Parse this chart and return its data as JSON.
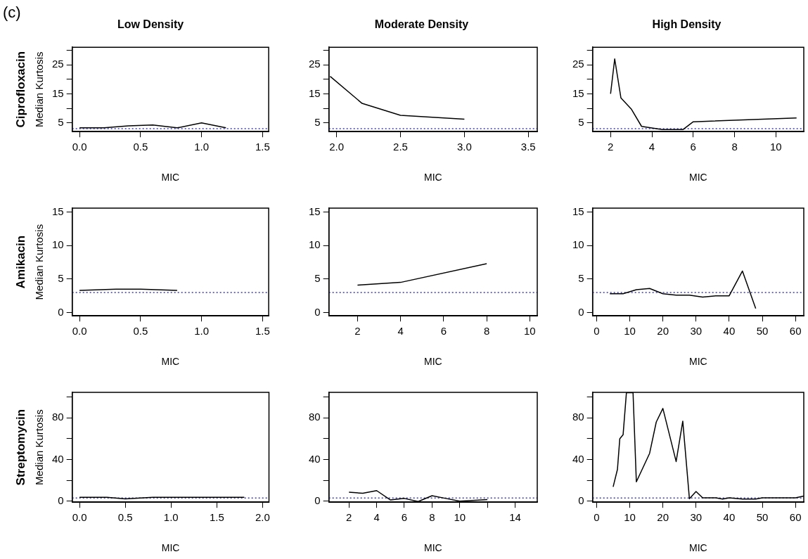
{
  "chart_data": [
    {
      "type": "line",
      "title": "Low Density",
      "xlabel": "MIC",
      "ylabel": "Median Kurtosis",
      "annotations": [
        "(c)",
        "Ciprofloxacin"
      ],
      "x": [
        0,
        0.2,
        0.4,
        0.6,
        0.8,
        1.0,
        1.2
      ],
      "values": [
        3.3,
        3.3,
        4.0,
        4.3,
        3.3,
        5.0,
        3.3
      ],
      "color": "#000000",
      "xlim": [
        -0.06,
        1.55
      ],
      "xticks": [
        {
          "value": 0,
          "label": "0.0"
        },
        0.5,
        {
          "value": 1,
          "label": "1.0"
        },
        1.5
      ],
      "ylim": [
        2,
        31
      ],
      "yticks": [
        5,
        {
          "value": 10,
          "label": null
        },
        15,
        {
          "value": 20,
          "label": null
        },
        25,
        {
          "value": 30,
          "label": null
        }
      ],
      "ref_lines": [
        {
          "axis": "y",
          "value": 3,
          "color": "#3b3bb0",
          "line_style": "dotted"
        }
      ],
      "grid": false,
      "legend": false
    },
    {
      "type": "line",
      "title": "Moderate Density",
      "xlabel": "MIC",
      "x": [
        1.95,
        2.2,
        2.5,
        3.0
      ],
      "values": [
        21.0,
        11.7,
        7.6,
        6.3
      ],
      "color": "#000000",
      "xlim": [
        1.94,
        3.57
      ],
      "xticks": [
        {
          "value": 2,
          "label": "2.0"
        },
        2.5,
        {
          "value": 3,
          "label": "3.0"
        },
        3.5
      ],
      "ylim": [
        2,
        31
      ],
      "yticks": [
        5,
        {
          "value": 10,
          "label": null
        },
        15,
        {
          "value": 20,
          "label": null
        },
        25,
        {
          "value": 30,
          "label": null
        }
      ],
      "ref_lines": [
        {
          "axis": "y",
          "value": 3,
          "color": "#3b3bb0",
          "line_style": "dotted"
        }
      ],
      "grid": false,
      "legend": false
    },
    {
      "type": "line",
      "title": "High Density",
      "xlabel": "MIC",
      "x": [
        2,
        2.2,
        2.5,
        3,
        3.5,
        4.5,
        5.5,
        6,
        11
      ],
      "values": [
        15.0,
        27.0,
        13.6,
        9.8,
        3.8,
        2.7,
        2.7,
        5.4,
        6.7
      ],
      "color": "#000000",
      "xlim": [
        1.13,
        11.35
      ],
      "xticks": [
        2,
        4,
        6,
        8,
        10
      ],
      "ylim": [
        2,
        31
      ],
      "yticks": [
        5,
        {
          "value": 10,
          "label": null
        },
        15,
        {
          "value": 20,
          "label": null
        },
        25,
        {
          "value": 30,
          "label": null
        }
      ],
      "ref_lines": [
        {
          "axis": "y",
          "value": 3,
          "color": "#3b3bb0",
          "line_style": "dotted"
        }
      ],
      "grid": false,
      "legend": false
    },
    {
      "type": "line",
      "xlabel": "MIC",
      "ylabel": "Median Kurtosis",
      "annotations": [
        "Amikacin"
      ],
      "x": [
        0,
        0.3,
        0.5,
        0.8
      ],
      "values": [
        3.3,
        3.5,
        3.5,
        3.3
      ],
      "color": "#000000",
      "xlim": [
        -0.06,
        1.55
      ],
      "xticks": [
        {
          "value": 0,
          "label": "0.0"
        },
        0.5,
        {
          "value": 1,
          "label": "1.0"
        },
        1.5
      ],
      "ylim": [
        -0.5,
        15.6
      ],
      "yticks": [
        0,
        5,
        10,
        15
      ],
      "ref_lines": [
        {
          "axis": "y",
          "value": 3,
          "color": "#3b3bb0",
          "line_style": "dotted"
        }
      ],
      "grid": false,
      "legend": false
    },
    {
      "type": "line",
      "xlabel": "MIC",
      "x": [
        2,
        4,
        8
      ],
      "values": [
        4.1,
        4.5,
        7.3
      ],
      "color": "#000000",
      "xlim": [
        0.67,
        10.35
      ],
      "xticks": [
        2,
        4,
        6,
        8,
        10
      ],
      "ylim": [
        -0.5,
        15.6
      ],
      "yticks": [
        0,
        5,
        10,
        15
      ],
      "ref_lines": [
        {
          "axis": "y",
          "value": 3,
          "color": "#3b3bb0",
          "line_style": "dotted"
        }
      ],
      "grid": false,
      "legend": false
    },
    {
      "type": "line",
      "xlabel": "MIC",
      "x": [
        4,
        8,
        12,
        16,
        20,
        24,
        28,
        32,
        36,
        40,
        44,
        48
      ],
      "values": [
        2.8,
        2.8,
        3.4,
        3.6,
        2.8,
        2.6,
        2.6,
        2.3,
        2.5,
        2.5,
        6.2,
        0.6
      ],
      "color": "#000000",
      "xlim": [
        -1.2,
        62.5
      ],
      "xticks": [
        0,
        10,
        20,
        30,
        40,
        50,
        60
      ],
      "ylim": [
        -0.5,
        15.6
      ],
      "yticks": [
        0,
        5,
        10,
        15
      ],
      "ref_lines": [
        {
          "axis": "y",
          "value": 3,
          "color": "#3b3bb0",
          "line_style": "dotted"
        }
      ],
      "grid": false,
      "legend": false
    },
    {
      "type": "line",
      "xlabel": "MIC",
      "ylabel": "Median Kurtosis",
      "annotations": [
        "Streptomycin"
      ],
      "x": [
        0,
        0.3,
        0.5,
        0.8,
        1.8
      ],
      "values": [
        3.7,
        3.7,
        2.2,
        3.7,
        3.7
      ],
      "color": "#000000",
      "xlim": [
        -0.08,
        2.07
      ],
      "xticks": [
        {
          "value": 0,
          "label": "0.0"
        },
        0.5,
        {
          "value": 1,
          "label": "1.0"
        },
        1.5,
        {
          "value": 2,
          "label": "2.0"
        }
      ],
      "ylim": [
        -1,
        104.4
      ],
      "yticks": [
        0,
        {
          "value": 20,
          "label": null
        },
        40,
        {
          "value": 60,
          "label": null
        },
        80,
        {
          "value": 100,
          "label": null
        }
      ],
      "ref_lines": [
        {
          "axis": "y",
          "value": 3,
          "color": "#3b3bb0",
          "line_style": "dotted"
        }
      ],
      "grid": false,
      "legend": false
    },
    {
      "type": "line",
      "xlabel": "MIC",
      "x": [
        2,
        3,
        4,
        5,
        6,
        7,
        8,
        9,
        10,
        12
      ],
      "values": [
        8.6,
        7.5,
        10.1,
        1.1,
        2.6,
        -0.4,
        5.2,
        2.6,
        0,
        1.5
      ],
      "color": "#000000",
      "xlim": [
        0.55,
        15.6
      ],
      "xticks": [
        2,
        4,
        6,
        8,
        10,
        {
          "value": 12,
          "label": null
        },
        14
      ],
      "ylim": [
        -1,
        104.4
      ],
      "yticks": [
        0,
        {
          "value": 20,
          "label": null
        },
        40,
        {
          "value": 60,
          "label": null
        },
        80,
        {
          "value": 100,
          "label": null
        }
      ],
      "ref_lines": [
        {
          "axis": "y",
          "value": 3,
          "color": "#3b3bb0",
          "line_style": "dotted"
        }
      ],
      "grid": false,
      "legend": false
    },
    {
      "type": "line",
      "xlabel": "MIC",
      "x": [
        5,
        6.3,
        7,
        8,
        9,
        11,
        12,
        16,
        18,
        20,
        24,
        26,
        28,
        30,
        32,
        36,
        38,
        40,
        44,
        48,
        50,
        60,
        62.5
      ],
      "values": [
        13.7,
        30.5,
        59.8,
        63.7,
        104,
        104,
        18.5,
        45.9,
        75.9,
        89,
        38,
        76.8,
        2.4,
        9.3,
        3.2,
        3.2,
        2,
        3.2,
        2,
        2,
        3.2,
        3.2,
        4.9
      ],
      "color": "#000000",
      "xlim": [
        -1.2,
        62.5
      ],
      "xticks": [
        0,
        10,
        20,
        30,
        40,
        50,
        60
      ],
      "ylim": [
        -1,
        104.4
      ],
      "yticks": [
        0,
        {
          "value": 20,
          "label": null
        },
        40,
        {
          "value": 60,
          "label": null
        },
        80,
        {
          "value": 100,
          "label": null
        }
      ],
      "ref_lines": [
        {
          "axis": "y",
          "value": 3,
          "color": "#3b3bb0",
          "line_style": "dotted"
        }
      ],
      "grid": false,
      "legend": false
    }
  ]
}
